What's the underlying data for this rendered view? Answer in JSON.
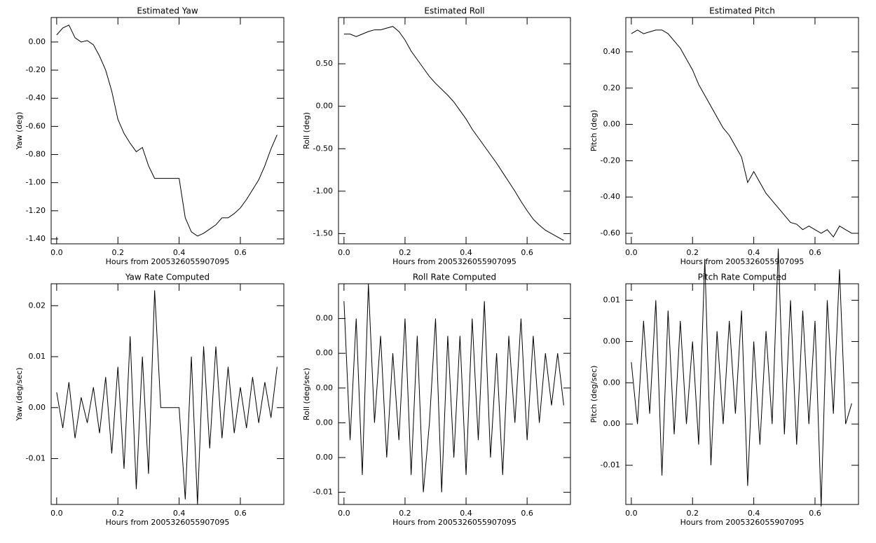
{
  "chart_data": [
    {
      "type": "line",
      "title": "Estimated Yaw",
      "x_label": "Hours from 2005326055907095",
      "y_label": "Yaw (deg)",
      "x": [
        0,
        0.02,
        0.04,
        0.06,
        0.08,
        0.1,
        0.12,
        0.14,
        0.16,
        0.18,
        0.2,
        0.22,
        0.24,
        0.26,
        0.28,
        0.3,
        0.32,
        0.34,
        0.36,
        0.38,
        0.4,
        0.42,
        0.44,
        0.46,
        0.48,
        0.5,
        0.52,
        0.54,
        0.56,
        0.58,
        0.6,
        0.62,
        0.64,
        0.66,
        0.68,
        0.7,
        0.72
      ],
      "values": [
        0.05,
        0.1,
        0.12,
        0.03,
        0,
        0.01,
        -0.02,
        -0.1,
        -0.2,
        -0.35,
        -0.55,
        -0.65,
        -0.72,
        -0.78,
        -0.75,
        -0.88,
        -0.97,
        -0.97,
        -0.97,
        -0.97,
        -0.97,
        -1.25,
        -1.35,
        -1.38,
        -1.36,
        -1.33,
        -1.3,
        -1.25,
        -1.25,
        -1.22,
        -1.18,
        -1.12,
        -1.05,
        -0.98,
        -0.88,
        -0.76,
        -0.66
      ],
      "color": "#000000",
      "xlim": [
        -0.018,
        0.742
      ],
      "ylim": [
        -1.435,
        0.174
      ],
      "xticks": [
        {
          "value": 0,
          "label": "0.0"
        },
        0.2,
        0.4,
        0.6
      ],
      "yticks": [
        {
          "value": 0,
          "label": "0.00"
        },
        {
          "value": -0.2,
          "label": "-0.20"
        },
        {
          "value": -0.4,
          "label": "-0.40"
        },
        {
          "value": -0.6,
          "label": "-0.60"
        },
        {
          "value": -0.8,
          "label": "-0.80"
        },
        {
          "value": -1,
          "label": "-1.00"
        },
        {
          "value": -1.2,
          "label": "-1.20"
        },
        {
          "value": -1.4,
          "label": "-1.40"
        }
      ]
    },
    {
      "type": "line",
      "title": "Estimated Roll",
      "x_label": "Hours from 2005326055907095",
      "y_label": "Roll (deg)",
      "x": [
        0,
        0.02,
        0.04,
        0.06,
        0.08,
        0.1,
        0.12,
        0.14,
        0.16,
        0.18,
        0.2,
        0.22,
        0.24,
        0.26,
        0.28,
        0.3,
        0.32,
        0.34,
        0.36,
        0.38,
        0.4,
        0.42,
        0.44,
        0.46,
        0.48,
        0.5,
        0.52,
        0.54,
        0.56,
        0.58,
        0.6,
        0.62,
        0.64,
        0.66,
        0.68,
        0.7,
        0.72
      ],
      "values": [
        0.85,
        0.85,
        0.82,
        0.85,
        0.88,
        0.9,
        0.9,
        0.92,
        0.94,
        0.88,
        0.78,
        0.65,
        0.55,
        0.45,
        0.35,
        0.27,
        0.2,
        0.13,
        0.05,
        -0.05,
        -0.15,
        -0.27,
        -0.37,
        -0.47,
        -0.57,
        -0.67,
        -0.78,
        -0.89,
        -1,
        -1.12,
        -1.23,
        -1.33,
        -1.4,
        -1.46,
        -1.5,
        -1.54,
        -1.58
      ],
      "color": "#000000",
      "xlim": [
        -0.018,
        0.742
      ],
      "ylim": [
        -1.62,
        1.045
      ],
      "xticks": [
        {
          "value": 0,
          "label": "0.0"
        },
        0.2,
        0.4,
        0.6
      ],
      "yticks": [
        {
          "value": 0.5,
          "label": "0.50"
        },
        {
          "value": 0,
          "label": "0.00"
        },
        {
          "value": -0.5,
          "label": "-0.50"
        },
        {
          "value": -1,
          "label": "-1.00"
        },
        {
          "value": -1.5,
          "label": "-1.50"
        }
      ]
    },
    {
      "type": "line",
      "title": "Estimated Pitch",
      "x_label": "Hours from 2005326055907095",
      "y_label": "Pitch (deg)",
      "x": [
        0,
        0.02,
        0.04,
        0.06,
        0.08,
        0.1,
        0.12,
        0.14,
        0.16,
        0.18,
        0.2,
        0.22,
        0.24,
        0.26,
        0.28,
        0.3,
        0.32,
        0.34,
        0.36,
        0.38,
        0.4,
        0.42,
        0.44,
        0.46,
        0.48,
        0.5,
        0.52,
        0.54,
        0.56,
        0.58,
        0.6,
        0.62,
        0.64,
        0.66,
        0.68,
        0.7,
        0.72
      ],
      "values": [
        0.5,
        0.52,
        0.5,
        0.51,
        0.52,
        0.52,
        0.5,
        0.46,
        0.42,
        0.36,
        0.3,
        0.22,
        0.16,
        0.1,
        0.04,
        -0.02,
        -0.06,
        -0.12,
        -0.18,
        -0.32,
        -0.26,
        -0.32,
        -0.38,
        -0.42,
        -0.46,
        -0.5,
        -0.54,
        -0.55,
        -0.58,
        -0.56,
        -0.58,
        -0.6,
        -0.58,
        -0.62,
        -0.56,
        -0.58,
        -0.6
      ],
      "color": "#000000",
      "xlim": [
        -0.018,
        0.742
      ],
      "ylim": [
        -0.658,
        0.589
      ],
      "xticks": [
        {
          "value": 0,
          "label": "0.0"
        },
        0.2,
        0.4,
        0.6
      ],
      "yticks": [
        {
          "value": 0.4,
          "label": "0.40"
        },
        {
          "value": 0.2,
          "label": "0.20"
        },
        {
          "value": 0,
          "label": "0.00"
        },
        {
          "value": -0.2,
          "label": "-0.20"
        },
        {
          "value": -0.4,
          "label": "-0.40"
        },
        {
          "value": -0.6,
          "label": "-0.60"
        }
      ]
    },
    {
      "type": "line",
      "title": "Yaw Rate Computed",
      "x_label": "Hours from 2005326055907095",
      "y_label": "Yaw (deg/sec)",
      "x": [
        0,
        0.02,
        0.04,
        0.06,
        0.08,
        0.1,
        0.12,
        0.14,
        0.16,
        0.18,
        0.2,
        0.22,
        0.24,
        0.26,
        0.28,
        0.3,
        0.32,
        0.34,
        0.36,
        0.38,
        0.4,
        0.42,
        0.44,
        0.46,
        0.48,
        0.5,
        0.52,
        0.54,
        0.56,
        0.58,
        0.6,
        0.62,
        0.64,
        0.66,
        0.68,
        0.7,
        0.72
      ],
      "values": [
        0.003,
        -0.004,
        0.005,
        -0.006,
        0.002,
        -0.003,
        0.004,
        -0.005,
        0.006,
        -0.009,
        0.008,
        -0.012,
        0.014,
        -0.016,
        0.01,
        -0.013,
        0.023,
        0,
        0,
        0,
        0,
        -0.018,
        0.01,
        -0.019,
        0.012,
        -0.008,
        0.012,
        -0.006,
        0.008,
        -0.005,
        0.004,
        -0.004,
        0.006,
        -0.003,
        0.005,
        -0.002,
        0.008
      ],
      "color": "#000000",
      "xlim": [
        -0.018,
        0.742
      ],
      "ylim": [
        -0.019,
        0.0243
      ],
      "xticks": [
        {
          "value": 0,
          "label": "0.0"
        },
        0.2,
        0.4,
        0.6
      ],
      "yticks": [
        0.02,
        0.01,
        {
          "value": 0,
          "label": "0.00"
        },
        -0.01
      ]
    },
    {
      "type": "line",
      "title": "Roll Rate Computed",
      "x_label": "Hours from 2005326055907095",
      "y_label": "Roll (deg/sec)",
      "x": [
        0,
        0.02,
        0.04,
        0.06,
        0.08,
        0.1,
        0.12,
        0.14,
        0.16,
        0.18,
        0.2,
        0.22,
        0.24,
        0.26,
        0.28,
        0.3,
        0.32,
        0.34,
        0.36,
        0.38,
        0.4,
        0.42,
        0.44,
        0.46,
        0.48,
        0.5,
        0.52,
        0.54,
        0.56,
        0.58,
        0.6,
        0.62,
        0.64,
        0.66,
        0.68,
        0.7,
        0.72
      ],
      "values": [
        0.005,
        -0.003,
        0.004,
        -0.005,
        0.006,
        -0.002,
        0.003,
        -0.004,
        0.002,
        -0.003,
        0.004,
        -0.005,
        0.003,
        -0.006,
        -0.002,
        0.004,
        -0.006,
        0.003,
        -0.004,
        0.003,
        -0.005,
        0.004,
        -0.003,
        0.005,
        -0.004,
        0.002,
        -0.005,
        0.003,
        -0.002,
        0.004,
        -0.003,
        0.003,
        -0.002,
        0.002,
        -0.001,
        0.002,
        -0.001
      ],
      "color": "#000000",
      "xlim": [
        -0.018,
        0.742
      ],
      "ylim": [
        -0.0067,
        0.006
      ],
      "xticks": [
        {
          "value": 0,
          "label": "0.0"
        },
        0.2,
        0.4,
        0.6
      ],
      "yticks": [
        {
          "value": 0.004,
          "label": "0.00"
        },
        {
          "value": 0.002,
          "label": "0.00"
        },
        {
          "value": 0,
          "label": "0.00"
        },
        {
          "value": -0.002,
          "label": "0.00"
        },
        {
          "value": -0.004,
          "label": "0.00"
        },
        {
          "value": -0.006,
          "label": "-0.01"
        }
      ]
    },
    {
      "type": "line",
      "title": "Pitch Rate Computed",
      "x_label": "Hours from 2005326055907095",
      "y_label": "Pitch (deg/sec)",
      "x": [
        0,
        0.02,
        0.04,
        0.06,
        0.08,
        0.1,
        0.12,
        0.14,
        0.16,
        0.18,
        0.2,
        0.22,
        0.24,
        0.26,
        0.28,
        0.3,
        0.32,
        0.34,
        0.36,
        0.38,
        0.4,
        0.42,
        0.44,
        0.46,
        0.48,
        0.5,
        0.52,
        0.54,
        0.56,
        0.58,
        0.6,
        0.62,
        0.64,
        0.66,
        0.68,
        0.7,
        0.72
      ],
      "values": [
        0.002,
        -0.004,
        0.006,
        -0.003,
        0.008,
        -0.009,
        0.007,
        -0.005,
        0.006,
        -0.004,
        0.004,
        -0.006,
        0.012,
        -0.008,
        0.005,
        -0.004,
        0.006,
        -0.003,
        0.007,
        -0.01,
        0.004,
        -0.006,
        0.005,
        -0.004,
        0.013,
        -0.005,
        0.008,
        -0.006,
        0.007,
        -0.004,
        0.006,
        -0.012,
        0.008,
        -0.003,
        0.011,
        -0.004,
        -0.002
      ],
      "color": "#000000",
      "xlim": [
        -0.018,
        0.742
      ],
      "ylim": [
        -0.0118,
        0.0096
      ],
      "xticks": [
        {
          "value": 0,
          "label": "0.0"
        },
        0.2,
        0.4,
        0.6
      ],
      "yticks": [
        {
          "value": 0.008,
          "label": "0.01"
        },
        {
          "value": 0.004,
          "label": "0.00"
        },
        {
          "value": 0,
          "label": "0.00"
        },
        {
          "value": -0.004,
          "label": "0.00"
        },
        {
          "value": -0.008,
          "label": "-0.01"
        }
      ]
    }
  ]
}
